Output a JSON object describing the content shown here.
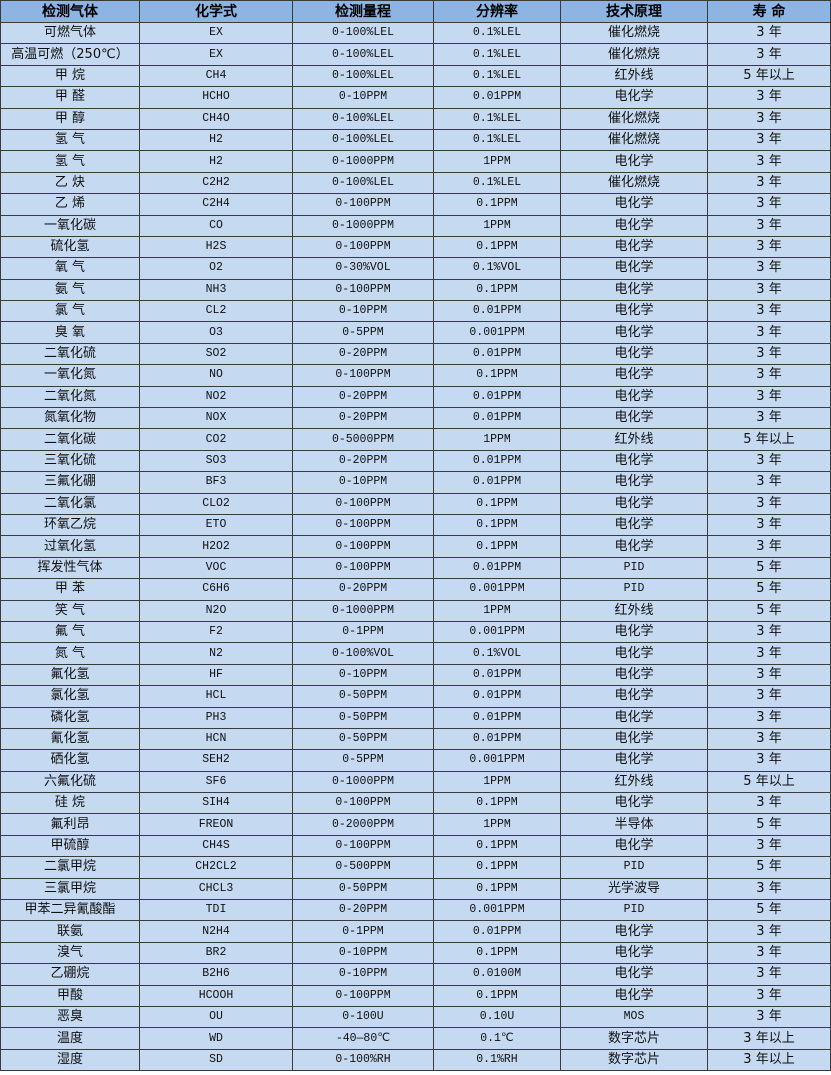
{
  "colors": {
    "header_bg": "#8DB4E2",
    "body_bg": "#C5D9F1",
    "border": "#3b3b3b"
  },
  "headers": [
    "检测气体",
    "化学式",
    "检测量程",
    "分辨率",
    "技术原理",
    "寿 命"
  ],
  "rows": [
    [
      "可燃气体",
      "EX",
      "0-100%LEL",
      "0.1%LEL",
      "催化燃烧",
      "3 年"
    ],
    [
      "高温可燃（250℃）",
      "EX",
      "0-100%LEL",
      "0.1%LEL",
      "催化燃烧",
      "3 年"
    ],
    [
      "甲 烷",
      "CH4",
      "0-100%LEL",
      "0.1%LEL",
      "红外线",
      "5 年以上"
    ],
    [
      "甲 醛",
      "HCHO",
      "0-10PPM",
      "0.01PPM",
      "电化学",
      "3 年"
    ],
    [
      "甲 醇",
      "CH4O",
      "0-100%LEL",
      "0.1%LEL",
      "催化燃烧",
      "3 年"
    ],
    [
      "氢 气",
      "H2",
      "0-100%LEL",
      "0.1%LEL",
      "催化燃烧",
      "3 年"
    ],
    [
      "氢 气",
      "H2",
      "0-1000PPM",
      "1PPM",
      "电化学",
      "3 年"
    ],
    [
      "乙 炔",
      "C2H2",
      "0-100%LEL",
      "0.1%LEL",
      "催化燃烧",
      "3 年"
    ],
    [
      "乙 烯",
      "C2H4",
      "0-100PPM",
      "0.1PPM",
      "电化学",
      "3 年"
    ],
    [
      "一氧化碳",
      "CO",
      "0-1000PPM",
      "1PPM",
      "电化学",
      "3 年"
    ],
    [
      "硫化氢",
      "H2S",
      "0-100PPM",
      "0.1PPM",
      "电化学",
      "3 年"
    ],
    [
      "氧 气",
      "O2",
      "0-30%VOL",
      "0.1%VOL",
      "电化学",
      "3 年"
    ],
    [
      "氨 气",
      "NH3",
      "0-100PPM",
      "0.1PPM",
      "电化学",
      "3 年"
    ],
    [
      "氯 气",
      "CL2",
      "0-10PPM",
      "0.01PPM",
      "电化学",
      "3 年"
    ],
    [
      "臭 氧",
      "O3",
      "0-5PPM",
      "0.001PPM",
      "电化学",
      "3 年"
    ],
    [
      "二氧化硫",
      "SO2",
      "0-20PPM",
      "0.01PPM",
      "电化学",
      "3 年"
    ],
    [
      "一氧化氮",
      "NO",
      "0-100PPM",
      "0.1PPM",
      "电化学",
      "3 年"
    ],
    [
      "二氧化氮",
      "NO2",
      "0-20PPM",
      "0.01PPM",
      "电化学",
      "3 年"
    ],
    [
      "氮氧化物",
      "NOX",
      "0-20PPM",
      "0.01PPM",
      "电化学",
      "3 年"
    ],
    [
      "二氧化碳",
      "CO2",
      "0-5000PPM",
      "1PPM",
      "红外线",
      "5 年以上"
    ],
    [
      "三氧化硫",
      "SO3",
      "0-20PPM",
      "0.01PPM",
      "电化学",
      "3 年"
    ],
    [
      "三氟化硼",
      "BF3",
      "0-10PPM",
      "0.01PPM",
      "电化学",
      "3 年"
    ],
    [
      "二氧化氯",
      "CLO2",
      "0-100PPM",
      "0.1PPM",
      "电化学",
      "3 年"
    ],
    [
      "环氧乙烷",
      "ETO",
      "0-100PPM",
      "0.1PPM",
      "电化学",
      "3 年"
    ],
    [
      "过氧化氢",
      "H2O2",
      "0-100PPM",
      "0.1PPM",
      "电化学",
      "3 年"
    ],
    [
      "挥发性气体",
      "VOC",
      "0-100PPM",
      "0.01PPM",
      "PID",
      "5 年"
    ],
    [
      "甲 苯",
      "C6H6",
      "0-20PPM",
      "0.001PPM",
      "PID",
      "5 年"
    ],
    [
      "笑 气",
      "N2O",
      "0-1000PPM",
      "1PPM",
      "红外线",
      "5 年"
    ],
    [
      "氟 气",
      "F2",
      "0-1PPM",
      "0.001PPM",
      "电化学",
      "3 年"
    ],
    [
      "氮 气",
      "N2",
      "0-100%VOL",
      "0.1%VOL",
      "电化学",
      "3 年"
    ],
    [
      "氟化氢",
      "HF",
      "0-10PPM",
      "0.01PPM",
      "电化学",
      "3 年"
    ],
    [
      "氯化氢",
      "HCL",
      "0-50PPM",
      "0.01PPM",
      "电化学",
      "3 年"
    ],
    [
      "磷化氢",
      "PH3",
      "0-50PPM",
      "0.01PPM",
      "电化学",
      "3 年"
    ],
    [
      "氰化氢",
      "HCN",
      "0-50PPM",
      "0.01PPM",
      "电化学",
      "3 年"
    ],
    [
      "硒化氢",
      "SEH2",
      "0-5PPM",
      "0.001PPM",
      "电化学",
      "3 年"
    ],
    [
      "六氟化硫",
      "SF6",
      "0-1000PPM",
      "1PPM",
      "红外线",
      "5 年以上"
    ],
    [
      "硅 烷",
      "SIH4",
      "0-100PPM",
      "0.1PPM",
      "电化学",
      "3 年"
    ],
    [
      "氟利昂",
      "FREON",
      "0-2000PPM",
      "1PPM",
      "半导体",
      "5 年"
    ],
    [
      "甲硫醇",
      "CH4S",
      "0-100PPM",
      "0.1PPM",
      "电化学",
      "3 年"
    ],
    [
      "二氯甲烷",
      "CH2CL2",
      "0-500PPM",
      "0.1PPM",
      "PID",
      "5 年"
    ],
    [
      "三氯甲烷",
      "CHCL3",
      "0-50PPM",
      "0.1PPM",
      "光学波导",
      "3 年"
    ],
    [
      "甲苯二异氰酸酯",
      "TDI",
      "0-20PPM",
      "0.001PPM",
      "PID",
      "5 年"
    ],
    [
      "联氨",
      "N2H4",
      "0-1PPM",
      "0.01PPM",
      "电化学",
      "3 年"
    ],
    [
      "溴气",
      "BR2",
      "0-10PPM",
      "0.1PPM",
      "电化学",
      "3 年"
    ],
    [
      "乙硼烷",
      "B2H6",
      "0-10PPM",
      "0.0100M",
      "电化学",
      "3 年"
    ],
    [
      "甲酸",
      "HCOOH",
      "0-100PPM",
      "0.1PPM",
      "电化学",
      "3 年"
    ],
    [
      "恶臭",
      "OU",
      "0-100U",
      "0.10U",
      "MOS",
      "3 年"
    ],
    [
      "温度",
      "WD",
      "-40—80℃",
      "0.1℃",
      "数字芯片",
      "3 年以上"
    ],
    [
      "湿度",
      "SD",
      "0-100%RH",
      "0.1%RH",
      "数字芯片",
      "3 年以上"
    ]
  ]
}
